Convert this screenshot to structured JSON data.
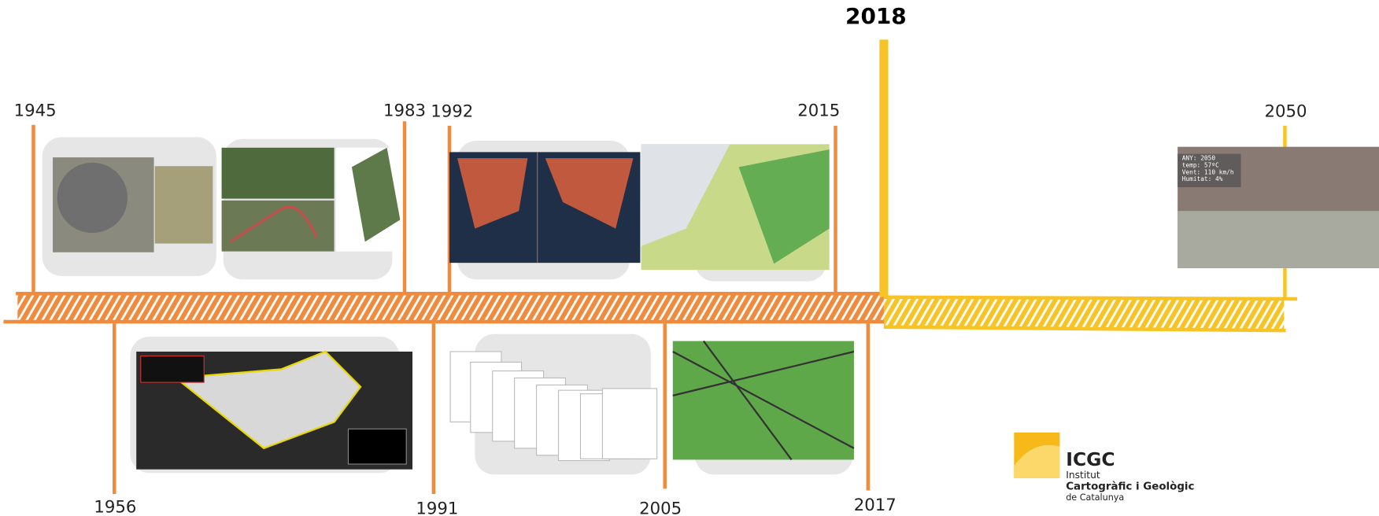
{
  "timeline": {
    "top_years": [
      "1945",
      "1983",
      "1992",
      "2015",
      "2050"
    ],
    "milestone_year": "2018",
    "bottom_years": [
      "1956",
      "1991",
      "2005",
      "2017"
    ],
    "overlay_lines": [
      "ANY: 2050",
      "temp: 57ºC",
      "Vent: 110 km/h",
      "Humitat: 4%"
    ],
    "logo": {
      "acronym": "ICGC",
      "line1": "Institut",
      "line2": "Cartogràfic i Geològic",
      "line3": "de Catalunya"
    }
  }
}
